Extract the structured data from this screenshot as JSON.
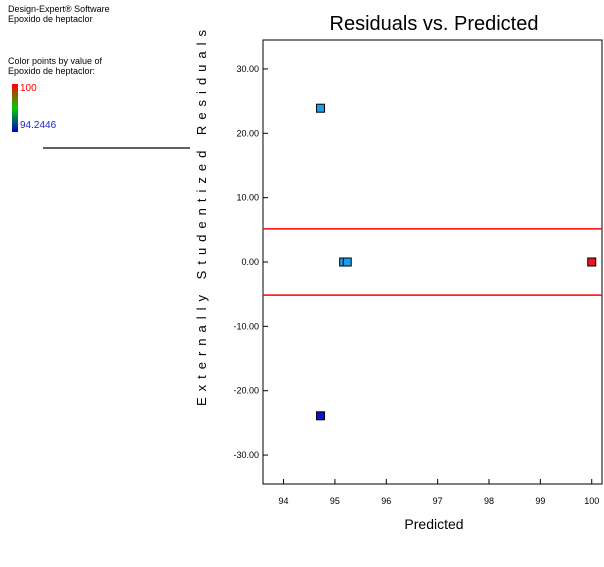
{
  "software": {
    "name": "Design-Expert® Software",
    "response": "Epoxido de heptaclor"
  },
  "color_legend": {
    "caption_line1": "Color points by value of",
    "caption_line2": "Epoxido de heptaclor:",
    "max_label": "100",
    "min_label": "94.2446",
    "max_color": "#ff0000",
    "mid_color": "#00cc00",
    "min_color": "#0000cc"
  },
  "chart_data": {
    "type": "scatter",
    "title": "Residuals vs. Predicted",
    "xlabel": "Predicted",
    "ylabel": "Externally Studentized Residuals",
    "xlim": [
      93.6,
      100.2
    ],
    "ylim": [
      -34.5,
      34.5
    ],
    "x_ticks": [
      94,
      95,
      96,
      97,
      98,
      99,
      100
    ],
    "x_tick_labels": [
      "94",
      "95",
      "96",
      "97",
      "98",
      "99",
      "100"
    ],
    "y_ticks": [
      30,
      20,
      10,
      0,
      -10,
      -20,
      -30
    ],
    "y_tick_labels": [
      "30.00",
      "20.00",
      "10.00",
      "0.00",
      "-10.00",
      "-20.00",
      "-30.00"
    ],
    "limit_lines": [
      5.15,
      -5.15
    ],
    "limit_line_color": "#ff0000",
    "points": [
      {
        "x": 94.72,
        "y": 23.9,
        "color": "#1e9de8"
      },
      {
        "x": 95.17,
        "y": 0.0,
        "color": "#1e9de8"
      },
      {
        "x": 95.24,
        "y": 0.0,
        "color": "#1e9de8"
      },
      {
        "x": 94.72,
        "y": -23.9,
        "color": "#0a14c8"
      },
      {
        "x": 100.0,
        "y": 0.0,
        "color": "#e8141e"
      }
    ]
  }
}
